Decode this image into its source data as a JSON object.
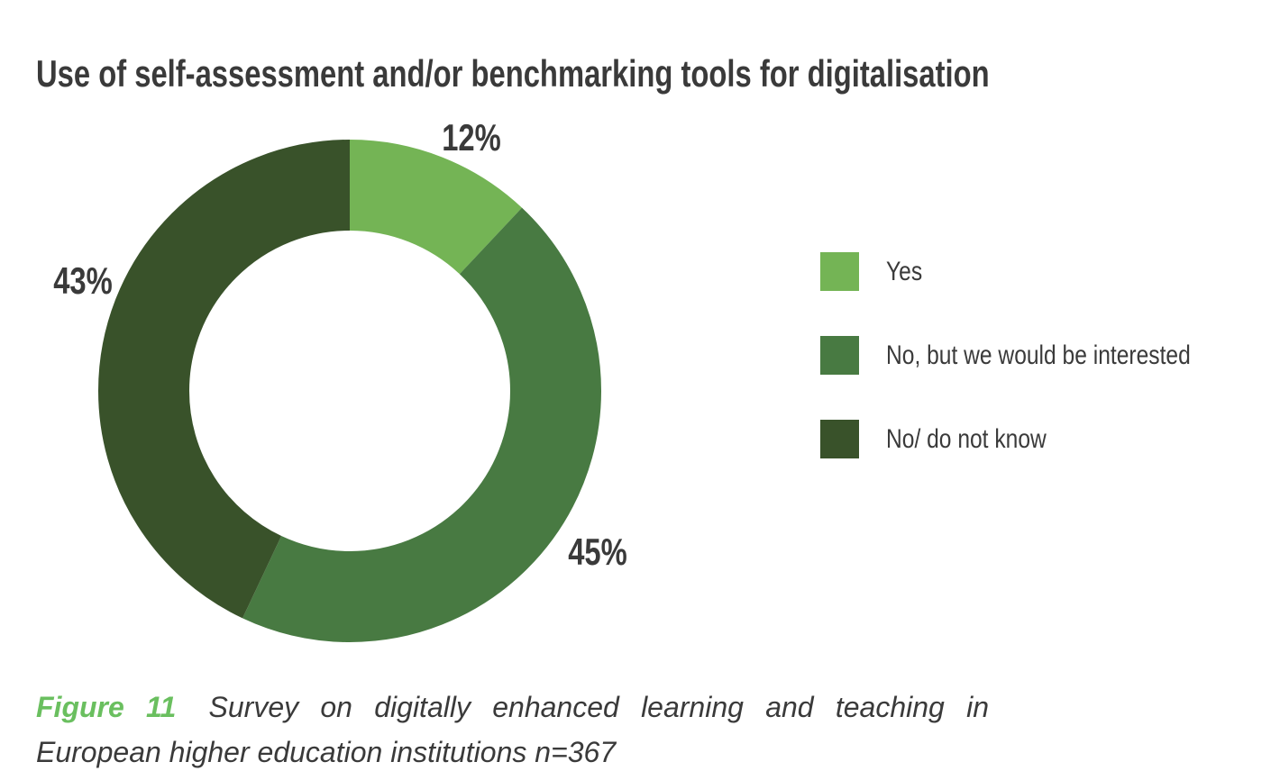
{
  "title": "Use of self-assessment and/or benchmarking tools for digitalisation",
  "chart_data": {
    "type": "pie",
    "subtype": "donut",
    "title": "Use of self-assessment and/or benchmarking tools for digitalisation",
    "categories": [
      "Yes",
      "No, but we would be interested",
      "No/ do not know"
    ],
    "values": [
      12,
      45,
      43
    ],
    "unit": "%",
    "colors": [
      "#74b455",
      "#487a42",
      "#39522a"
    ],
    "slice_labels": [
      "12%",
      "45%",
      "43%"
    ],
    "start_angle_deg": 0,
    "direction": "clockwise",
    "donut_hole_ratio": 0.64,
    "legend_position": "right",
    "sample_size_note": "n=367"
  },
  "legend": {
    "items": [
      {
        "label": "Yes",
        "color": "#74b455"
      },
      {
        "label": "No, but we would be interested",
        "color": "#487a42"
      },
      {
        "label": "No/ do not know",
        "color": "#39522a"
      }
    ]
  },
  "caption": {
    "figure_label": "Figure 11",
    "text_line1": "Survey on digitally enhanced learning and teaching in",
    "text_line2": "European higher education institutions n=367",
    "accent_color": "#6abf5f"
  },
  "colors": {
    "text_dark": "#3a3a3a",
    "background": "#ffffff"
  }
}
